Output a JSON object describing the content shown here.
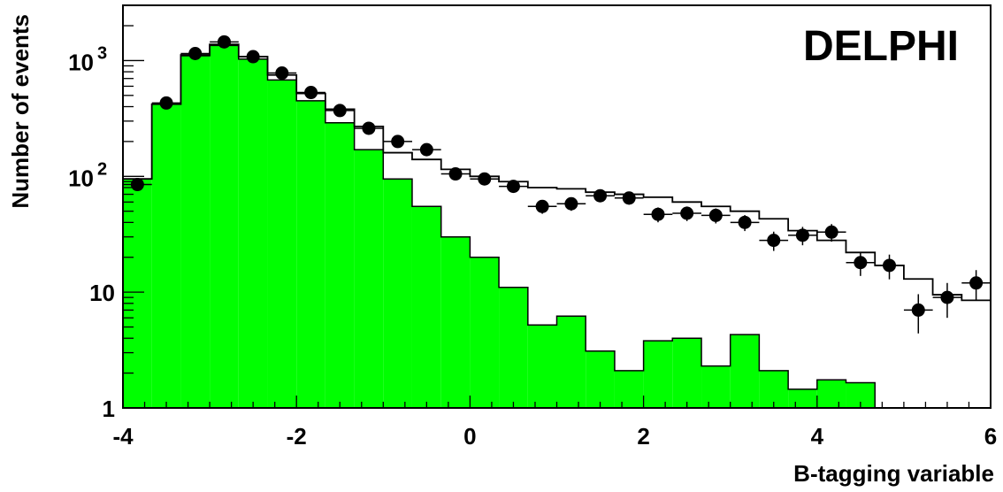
{
  "chart_data": {
    "type": "histogram",
    "title": "",
    "label": "DELPHI",
    "xlabel": "B-tagging variable",
    "ylabel": "Number of events",
    "xlim": [
      -4,
      6
    ],
    "ylim": [
      1,
      3000
    ],
    "yscale": "log",
    "x_ticks": [
      {
        "value": -4,
        "label": "-4"
      },
      {
        "value": -2,
        "label": "-2"
      },
      {
        "value": 0,
        "label": "0"
      },
      {
        "value": 2,
        "label": "2"
      },
      {
        "value": 4,
        "label": "4"
      },
      {
        "value": 6,
        "label": "6"
      }
    ],
    "y_ticks": [
      {
        "value": 1,
        "base": "1",
        "exp": ""
      },
      {
        "value": 10,
        "base": "10",
        "exp": ""
      },
      {
        "value": 100,
        "base": "10",
        "exp": "2"
      },
      {
        "value": 1000,
        "base": "10",
        "exp": "3"
      }
    ],
    "bin_edges": [
      -4.0,
      -3.667,
      -3.333,
      -3.0,
      -2.667,
      -2.333,
      -2.0,
      -1.667,
      -1.333,
      -1.0,
      -0.667,
      -0.333,
      0.0,
      0.333,
      0.667,
      1.0,
      1.333,
      1.667,
      2.0,
      2.333,
      2.667,
      3.0,
      3.333,
      3.667,
      4.0,
      4.333,
      4.667,
      5.0,
      5.333,
      5.667,
      6.0
    ],
    "series": [
      {
        "kind": "filled",
        "color": "#00ff00",
        "values": [
          95,
          420,
          1100,
          1350,
          1030,
          680,
          450,
          290,
          170,
          95,
          55,
          30,
          20,
          11,
          5.2,
          6.2,
          3.1,
          2.1,
          3.8,
          4.0,
          2.3,
          4.3,
          2.1,
          1.45,
          1.75,
          1.65,
          null,
          null,
          null,
          null
        ]
      },
      {
        "kind": "step",
        "color": "#000000",
        "values": [
          95,
          420,
          1120,
          1380,
          1080,
          750,
          520,
          380,
          270,
          160,
          140,
          115,
          100,
          90,
          80,
          78,
          73,
          70,
          66,
          60,
          55,
          50,
          43,
          34,
          28,
          22,
          17,
          13,
          9.5,
          8.5
        ]
      },
      {
        "kind": "points",
        "color": "#000000",
        "x": [
          -3.833,
          -3.5,
          -3.167,
          -2.833,
          -2.5,
          -2.167,
          -1.833,
          -1.5,
          -1.167,
          -0.833,
          -0.5,
          -0.167,
          0.167,
          0.5,
          0.833,
          1.167,
          1.5,
          1.833,
          2.167,
          2.5,
          2.833,
          3.167,
          3.5,
          3.833,
          4.167,
          4.5,
          4.833,
          5.167,
          5.5,
          5.833
        ],
        "y": [
          85,
          430,
          1150,
          1450,
          1080,
          780,
          530,
          370,
          260,
          200,
          170,
          105,
          95,
          82,
          55,
          58,
          68,
          65,
          47,
          48,
          46,
          40,
          28,
          31,
          33,
          18,
          17,
          7,
          9,
          12
        ],
        "yerr": [
          9,
          20,
          34,
          38,
          33,
          28,
          23,
          19,
          16,
          14,
          13,
          10,
          10,
          9,
          7.5,
          7.6,
          8.2,
          8.1,
          6.9,
          6.9,
          6.8,
          6.3,
          5.3,
          5.6,
          5.7,
          4.2,
          4.1,
          2.6,
          3,
          3.5
        ]
      }
    ]
  }
}
